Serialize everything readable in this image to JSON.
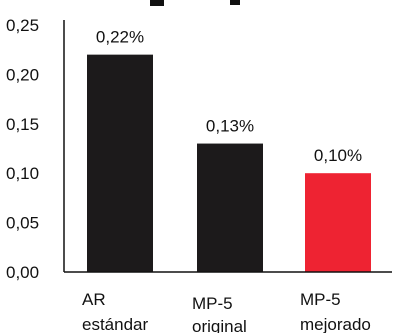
{
  "chart_data": {
    "type": "bar",
    "title": "",
    "xlabel": "",
    "ylabel": "",
    "categories": [
      [
        "AR",
        "estándar"
      ],
      [
        "MP-5",
        "original"
      ],
      [
        "MP-5",
        "mejorado"
      ]
    ],
    "values": [
      0.22,
      0.13,
      0.1
    ],
    "data_labels": [
      "0,22%",
      "0,13%",
      "0,10%"
    ],
    "bar_colors": [
      "#1c1a1b",
      "#1c1a1b",
      "#ee2332"
    ],
    "ylim": [
      0,
      0.25
    ],
    "yticks": [
      0,
      0.05,
      0.1,
      0.15,
      0.2,
      0.25
    ],
    "ytick_labels": [
      "0,00",
      "0,05",
      "0,10",
      "0,15",
      "0,20",
      "0,25"
    ],
    "grid": false,
    "legend": "none"
  }
}
